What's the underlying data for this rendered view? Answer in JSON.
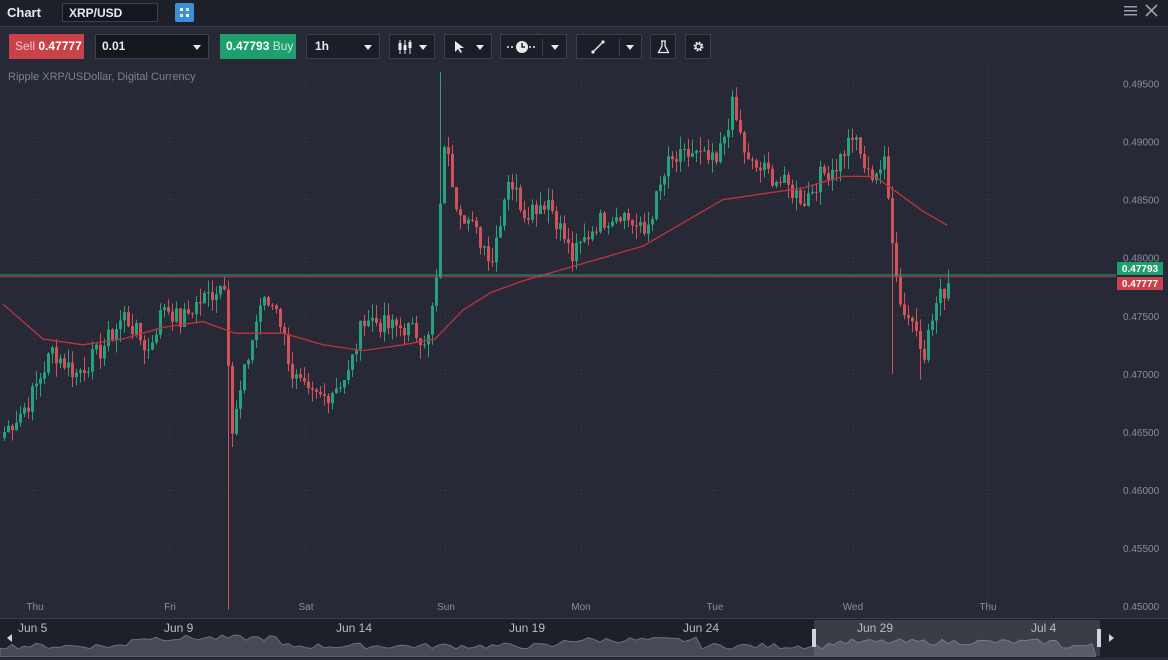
{
  "window": {
    "title": "Chart",
    "symbol": "XRP/USD"
  },
  "toolbar": {
    "sell_label": "Sell",
    "sell_price": "0.47777",
    "quantity": "0.01",
    "buy_price": "0.47793",
    "buy_label": "Buy",
    "timeframe": "1h"
  },
  "instrument_description": "Ripple XRP/USDollar, Digital Currency",
  "colors": {
    "background": "#272936",
    "up": "#26a17b",
    "down": "#d0525a",
    "ma": "#c0323f",
    "bid_line": "#26a17b",
    "ask_line": "#c9424a"
  },
  "price_axis": {
    "labels": [
      "0.49500",
      "0.49000",
      "0.48500",
      "0.48000",
      "0.47500",
      "0.47000",
      "0.46500",
      "0.46000",
      "0.45500",
      "0.45000"
    ]
  },
  "time_axis": {
    "labels": [
      "Thu",
      "Fri",
      "Sat",
      "Sun",
      "Mon",
      "Tue",
      "Wed",
      "Thu"
    ]
  },
  "price_tags": {
    "buy": "0.47793",
    "sell": "0.47777"
  },
  "navigator": {
    "labels": [
      "Jun 5",
      "Jun 9",
      "Jun 14",
      "Jun 19",
      "Jun 24",
      "Jun 29",
      "Jul 4"
    ]
  },
  "chart_data": {
    "type": "candlestick",
    "symbol": "XRP/USD",
    "timeframe": "1h",
    "ylim": [
      0.4495,
      0.4965
    ],
    "anchors_close": [
      {
        "i": 0,
        "c": 0.465
      },
      {
        "i": 6,
        "c": 0.4675
      },
      {
        "i": 12,
        "c": 0.472
      },
      {
        "i": 18,
        "c": 0.47
      },
      {
        "i": 24,
        "c": 0.472
      },
      {
        "i": 30,
        "c": 0.475
      },
      {
        "i": 36,
        "c": 0.472
      },
      {
        "i": 40,
        "c": 0.476
      },
      {
        "i": 44,
        "c": 0.4745
      },
      {
        "i": 48,
        "c": 0.476
      },
      {
        "i": 52,
        "c": 0.477
      },
      {
        "i": 55,
        "c": 0.478
      },
      {
        "i": 57,
        "c": 0.465
      },
      {
        "i": 60,
        "c": 0.47
      },
      {
        "i": 64,
        "c": 0.476
      },
      {
        "i": 68,
        "c": 0.476
      },
      {
        "i": 72,
        "c": 0.47
      },
      {
        "i": 76,
        "c": 0.468
      },
      {
        "i": 80,
        "c": 0.468
      },
      {
        "i": 86,
        "c": 0.47
      },
      {
        "i": 90,
        "c": 0.475
      },
      {
        "i": 96,
        "c": 0.474
      },
      {
        "i": 100,
        "c": 0.474
      },
      {
        "i": 106,
        "c": 0.473
      },
      {
        "i": 108,
        "c": 0.478
      },
      {
        "i": 110,
        "c": 0.49
      },
      {
        "i": 113,
        "c": 0.485
      },
      {
        "i": 118,
        "c": 0.482
      },
      {
        "i": 122,
        "c": 0.48
      },
      {
        "i": 126,
        "c": 0.487
      },
      {
        "i": 130,
        "c": 0.484
      },
      {
        "i": 136,
        "c": 0.485
      },
      {
        "i": 142,
        "c": 0.48
      },
      {
        "i": 148,
        "c": 0.483
      },
      {
        "i": 154,
        "c": 0.484
      },
      {
        "i": 160,
        "c": 0.482
      },
      {
        "i": 166,
        "c": 0.488
      },
      {
        "i": 172,
        "c": 0.489
      },
      {
        "i": 178,
        "c": 0.488
      },
      {
        "i": 182,
        "c": 0.493
      },
      {
        "i": 186,
        "c": 0.488
      },
      {
        "i": 190,
        "c": 0.4875
      },
      {
        "i": 196,
        "c": 0.486
      },
      {
        "i": 200,
        "c": 0.485
      },
      {
        "i": 204,
        "c": 0.487
      },
      {
        "i": 208,
        "c": 0.488
      },
      {
        "i": 212,
        "c": 0.4905
      },
      {
        "i": 216,
        "c": 0.487
      },
      {
        "i": 220,
        "c": 0.488
      },
      {
        "i": 222,
        "c": 0.482
      },
      {
        "i": 224,
        "c": 0.476
      },
      {
        "i": 228,
        "c": 0.474
      },
      {
        "i": 230,
        "c": 0.472
      },
      {
        "i": 233,
        "c": 0.476
      },
      {
        "i": 236,
        "c": 0.4778
      }
    ],
    "moving_average": [
      {
        "i": 0,
        "v": 0.476
      },
      {
        "i": 10,
        "v": 0.473
      },
      {
        "i": 20,
        "v": 0.4725
      },
      {
        "i": 30,
        "v": 0.473
      },
      {
        "i": 40,
        "v": 0.474
      },
      {
        "i": 50,
        "v": 0.4745
      },
      {
        "i": 58,
        "v": 0.4735
      },
      {
        "i": 70,
        "v": 0.4735
      },
      {
        "i": 80,
        "v": 0.4725
      },
      {
        "i": 90,
        "v": 0.472
      },
      {
        "i": 100,
        "v": 0.4725
      },
      {
        "i": 108,
        "v": 0.473
      },
      {
        "i": 115,
        "v": 0.4755
      },
      {
        "i": 122,
        "v": 0.477
      },
      {
        "i": 130,
        "v": 0.478
      },
      {
        "i": 140,
        "v": 0.479
      },
      {
        "i": 150,
        "v": 0.48
      },
      {
        "i": 160,
        "v": 0.481
      },
      {
        "i": 170,
        "v": 0.483
      },
      {
        "i": 180,
        "v": 0.485
      },
      {
        "i": 190,
        "v": 0.4855
      },
      {
        "i": 200,
        "v": 0.486
      },
      {
        "i": 210,
        "v": 0.487
      },
      {
        "i": 218,
        "v": 0.487
      },
      {
        "i": 224,
        "v": 0.4855
      },
      {
        "i": 230,
        "v": 0.484
      },
      {
        "i": 236,
        "v": 0.4828
      }
    ],
    "spikes": [
      {
        "i": 56,
        "low": 0.4497
      },
      {
        "i": 109,
        "high": 0.496
      },
      {
        "i": 222,
        "low": 0.47
      },
      {
        "i": 229,
        "low": 0.4695
      }
    ]
  }
}
